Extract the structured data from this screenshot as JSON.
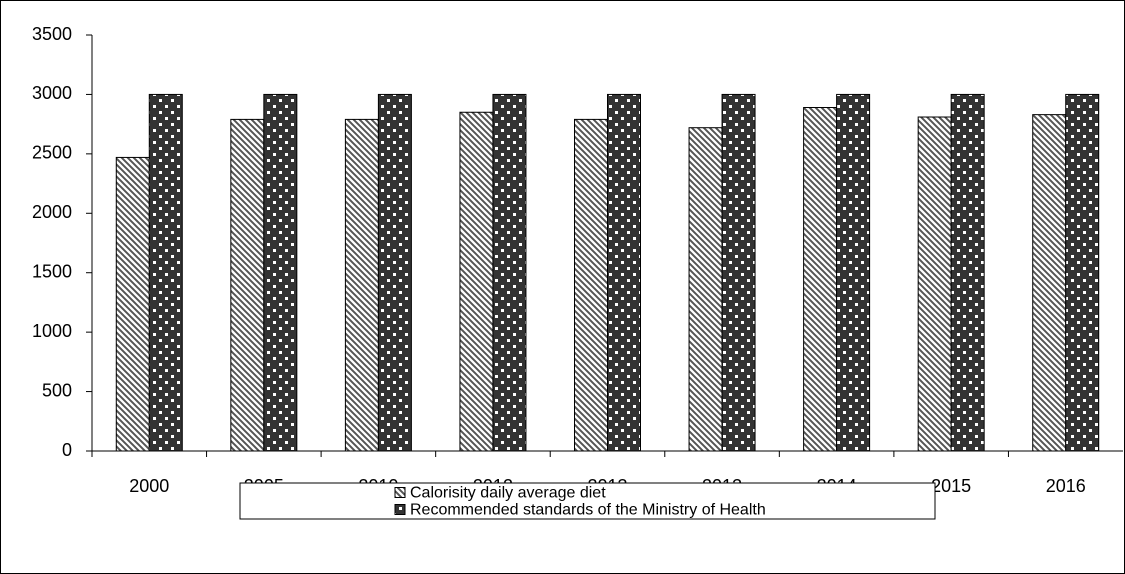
{
  "chart_data": {
    "type": "bar",
    "categories": [
      "2000",
      "2005",
      "2010",
      "2012",
      "2013",
      "2013",
      "2014",
      "2015",
      "2016"
    ],
    "series": [
      {
        "name": "Calorisity  daily average diet",
        "color": "#555555",
        "pattern": "hatch",
        "values": [
          2470,
          2790,
          2790,
          2850,
          2790,
          2720,
          2890,
          2810,
          2830
        ]
      },
      {
        "name": "Recommended standards of the Ministry of Health",
        "color": "#333333",
        "pattern": "dots",
        "values": [
          3000,
          3000,
          3000,
          3000,
          3000,
          3000,
          3000,
          3000,
          3000
        ]
      }
    ],
    "ylim": [
      0,
      3500
    ],
    "yticks": [
      0,
      500,
      1000,
      1500,
      2000,
      2500,
      3000,
      3500
    ],
    "grid": false,
    "legend": "bottom"
  }
}
